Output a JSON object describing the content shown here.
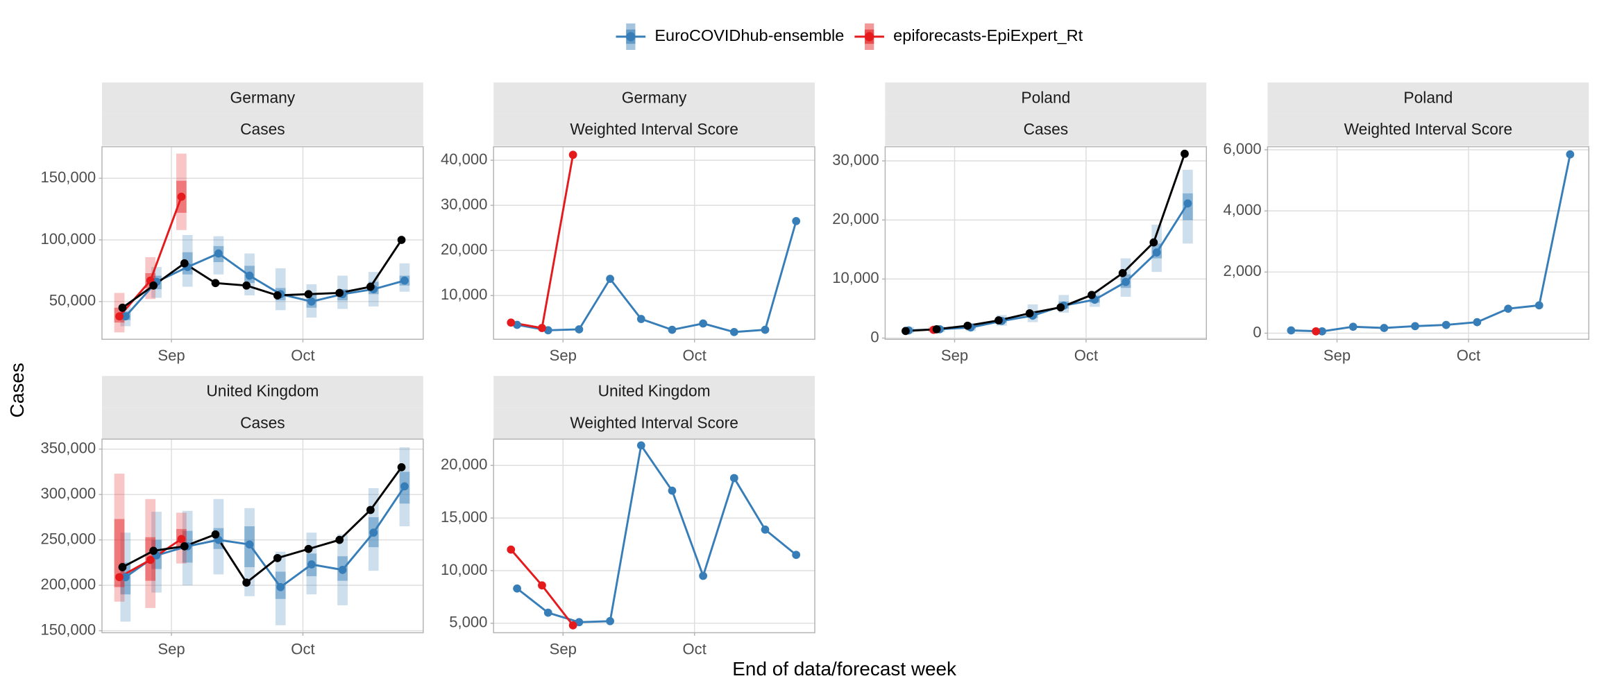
{
  "chart_data": {
    "type": "line",
    "xlabel": "End of data/forecast week",
    "ylabel": "Cases",
    "observed_color": "#000000",
    "series": [
      {
        "name": "EuroCOVIDhub-ensemble",
        "color": "#377eb8"
      },
      {
        "name": "epiforecasts-EpiExpert_Rt",
        "color": "#e41a1c"
      }
    ],
    "categories": [
      null,
      null,
      null,
      null,
      null,
      null,
      null,
      null,
      null,
      null
    ],
    "xlim": [
      -0.66,
      9.7
    ],
    "xticks": [
      {
        "value": 1.58,
        "label": "Sep"
      },
      {
        "value": 5.82,
        "label": "Oct"
      }
    ],
    "grid": true,
    "panels": [
      {
        "location": "Germany",
        "metric": "Cases",
        "ylim": [
          19400,
          175600
        ],
        "yticks": [
          {
            "value": 50000,
            "label": "50,000"
          },
          {
            "value": 100000,
            "label": "100,000"
          },
          {
            "value": 150000,
            "label": "150,000"
          }
        ],
        "observed": [
          45000,
          63000,
          81000,
          65000,
          63000,
          55000,
          56000,
          57000,
          62000,
          100000
        ],
        "forecasts": [
          {
            "values": [
              38000,
              66000,
              78000,
              89000,
              71000,
              56000,
              50000,
              56000,
              60000,
              67000
            ],
            "lower_95": [
              30000,
              53000,
              62000,
              72000,
              55000,
              43000,
              37000,
              44000,
              46000,
              58000
            ],
            "upper_95": [
              48000,
              78000,
              104000,
              103000,
              89000,
              77000,
              64000,
              71000,
              74000,
              81000
            ],
            "lower_50": [
              35000,
              60000,
              72000,
              82000,
              65000,
              51000,
              45000,
              51000,
              56000,
              63000
            ],
            "upper_50": [
              42000,
              71000,
              90000,
              95000,
              79000,
              61000,
              56000,
              60000,
              66000,
              71000
            ]
          },
          {
            "values": [
              38000,
              67000,
              135000,
              null,
              null,
              null,
              null,
              null,
              null,
              null
            ],
            "lower_95": [
              25000,
              52000,
              108000,
              null,
              null,
              null,
              null,
              null,
              null,
              null
            ],
            "upper_95": [
              57000,
              86000,
              170000,
              null,
              null,
              null,
              null,
              null,
              null,
              null
            ],
            "lower_50": [
              33000,
              61000,
              122000,
              null,
              null,
              null,
              null,
              null,
              null,
              null
            ],
            "upper_50": [
              45000,
              73000,
              148000,
              null,
              null,
              null,
              null,
              null,
              null,
              null
            ]
          }
        ]
      },
      {
        "location": "Germany",
        "metric": "Weighted Interval Score",
        "ylim": [
          300,
          43000
        ],
        "yticks": [
          {
            "value": 10000,
            "label": "10,000"
          },
          {
            "value": 20000,
            "label": "20,000"
          },
          {
            "value": 30000,
            "label": "30,000"
          },
          {
            "value": 40000,
            "label": "40,000"
          }
        ],
        "forecasts": [
          {
            "values": [
              3500,
              2300,
              2500,
              13700,
              4800,
              2400,
              3800,
              1900,
              2400,
              26500
            ]
          },
          {
            "values": [
              4000,
              2800,
              41200,
              null,
              null,
              null,
              null,
              null,
              null,
              null
            ]
          }
        ]
      },
      {
        "location": "Poland",
        "metric": "Cases",
        "ylim": [
          -200,
          32400
        ],
        "yticks": [
          0,
          {
            "value": 10000,
            "label": "10,000"
          },
          {
            "value": 20000,
            "label": "20,000"
          },
          {
            "value": 30000,
            "label": "30,000"
          }
        ],
        "observed": [
          1200,
          1500,
          2100,
          3000,
          4200,
          5200,
          7300,
          11000,
          16200,
          31200
        ],
        "forecasts": [
          {
            "values": [
              1300,
              1500,
              1800,
              2900,
              3800,
              5500,
              6500,
              9500,
              14500,
              22800
            ],
            "lower_95": [
              800,
              1000,
              1200,
              2100,
              2700,
              4300,
              5300,
              7000,
              11200,
              16000
            ],
            "upper_95": [
              1900,
              2000,
              2500,
              3900,
              5700,
              7300,
              8000,
              13500,
              19200,
              28500
            ],
            "lower_50": [
              1100,
              1300,
              1600,
              2600,
              3400,
              5000,
              6000,
              8500,
              13500,
              20000
            ],
            "upper_50": [
              1500,
              1700,
              2100,
              3300,
              4500,
              6200,
              7200,
              10800,
              16000,
              24500
            ]
          },
          {
            "values": [
              null,
              1400,
              null,
              null,
              null,
              null,
              null,
              null,
              null,
              null
            ],
            "lower_95": [
              null,
              1000,
              null,
              null,
              null,
              null,
              null,
              null,
              null,
              null
            ],
            "upper_95": [
              null,
              1900,
              null,
              null,
              null,
              null,
              null,
              null,
              null,
              null
            ],
            "lower_50": [
              null,
              1200,
              null,
              null,
              null,
              null,
              null,
              null,
              null,
              null
            ],
            "upper_50": [
              null,
              1600,
              null,
              null,
              null,
              null,
              null,
              null,
              null,
              null
            ]
          }
        ]
      },
      {
        "location": "Poland",
        "metric": "Weighted Interval Score",
        "ylim": [
          -200,
          6100
        ],
        "yticks": [
          0,
          {
            "value": 2000,
            "label": "2,000"
          },
          {
            "value": 4000,
            "label": "4,000"
          },
          {
            "value": 6000,
            "label": "6,000"
          }
        ],
        "forecasts": [
          {
            "values": [
              90,
              60,
              210,
              170,
              230,
              270,
              360,
              800,
              910,
              5850
            ]
          },
          {
            "values": [
              null,
              60,
              null,
              null,
              null,
              null,
              null,
              null,
              null,
              null
            ]
          }
        ]
      },
      {
        "location": "United Kingdom",
        "metric": "Cases",
        "ylim": [
          147800,
          361000
        ],
        "yticks": [
          {
            "value": 150000,
            "label": "150,000"
          },
          {
            "value": 200000,
            "label": "200,000"
          },
          {
            "value": 250000,
            "label": "250,000"
          },
          {
            "value": 300000,
            "label": "300,000"
          },
          {
            "value": 350000,
            "label": "350,000"
          }
        ],
        "observed": [
          220000,
          238000,
          243000,
          256000,
          203000,
          230000,
          240000,
          250000,
          283000,
          330000
        ],
        "forecasts": [
          {
            "values": [
              209000,
              233000,
              243000,
              250000,
              245000,
              198000,
              223000,
              217000,
              258000,
              309000
            ],
            "lower_95": [
              160000,
              192000,
              200000,
              212000,
              188000,
              156000,
              190000,
              178000,
              216000,
              265000
            ],
            "upper_95": [
              258000,
              281000,
              282000,
              295000,
              285000,
              237000,
              258000,
              256000,
              307000,
              352000
            ],
            "lower_50": [
              190000,
              218000,
              225000,
              240000,
              220000,
              185000,
              210000,
              205000,
              242000,
              290000
            ],
            "upper_50": [
              225000,
              250000,
              260000,
              263000,
              265000,
              215000,
              235000,
              232000,
              275000,
              325000
            ]
          },
          {
            "values": [
              209000,
              228000,
              251000,
              null,
              null,
              null,
              null,
              null,
              null,
              null
            ],
            "lower_95": [
              182000,
              175000,
              224000,
              null,
              null,
              null,
              null,
              null,
              null,
              null
            ],
            "upper_95": [
              323000,
              295000,
              280000,
              null,
              null,
              null,
              null,
              null,
              null,
              null
            ],
            "lower_50": [
              198000,
              205000,
              240000,
              null,
              null,
              null,
              null,
              null,
              null,
              null
            ],
            "upper_50": [
              273000,
              253000,
              262000,
              null,
              null,
              null,
              null,
              null,
              null,
              null
            ]
          }
        ]
      },
      {
        "location": "United Kingdom",
        "metric": "Weighted Interval Score",
        "ylim": [
          4100,
          22500
        ],
        "yticks": [
          {
            "value": 5000,
            "label": "5,000"
          },
          {
            "value": 10000,
            "label": "10,000"
          },
          {
            "value": 15000,
            "label": "15,000"
          },
          {
            "value": 20000,
            "label": "20,000"
          }
        ],
        "forecasts": [
          {
            "values": [
              8300,
              6000,
              5100,
              5200,
              21900,
              17600,
              9500,
              18800,
              13900,
              11500
            ]
          },
          {
            "values": [
              12000,
              8600,
              4800,
              null,
              null,
              null,
              null,
              null,
              null,
              null
            ]
          }
        ]
      }
    ]
  }
}
